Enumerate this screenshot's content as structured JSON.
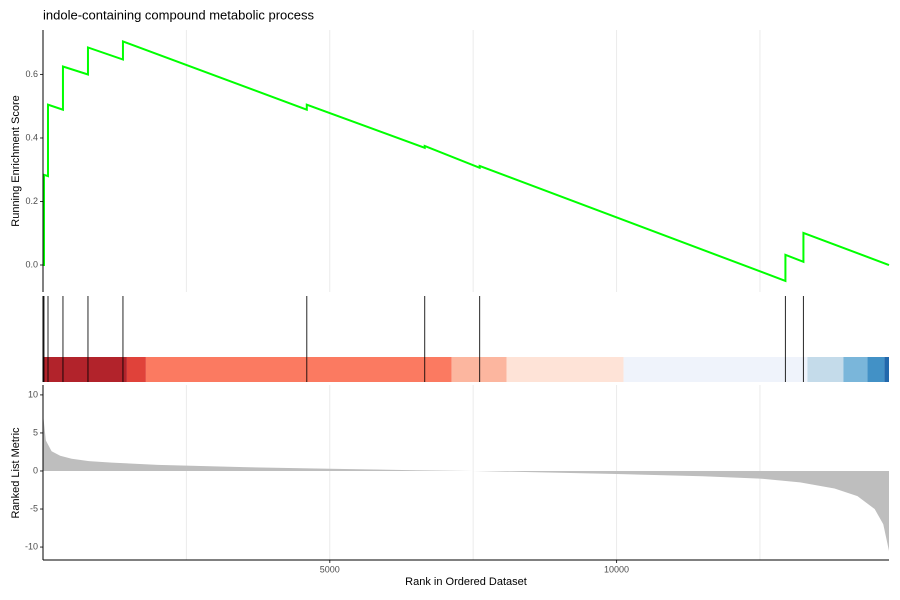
{
  "chart_data": [
    {
      "type": "line",
      "title": "indole-containing compound metabolic process",
      "ylabel": "Running Enrichment Score",
      "color": "#00ff00",
      "x": [
        0,
        17,
        17,
        87,
        87,
        348,
        348,
        784,
        784,
        1394,
        1394,
        4599,
        4599,
        6655,
        6655,
        7613,
        7613,
        12944,
        12944,
        13258,
        13258,
        14750
      ],
      "values": [
        0,
        0,
        0.284,
        0.28,
        0.505,
        0.489,
        0.625,
        0.6,
        0.685,
        0.647,
        0.704,
        0.489,
        0.505,
        0.369,
        0.375,
        0.306,
        0.312,
        -0.05,
        0.032,
        0.01,
        0.101,
        0.0
      ],
      "xlim": [
        0,
        14750
      ],
      "ylim": [
        -0.085,
        0.74
      ],
      "yticks": [
        {
          "value": 0,
          "label": "0.0"
        },
        0.2,
        0.4,
        0.6
      ],
      "xgrid": [
        2500,
        5000,
        7500,
        10000,
        12500
      ]
    },
    {
      "type": "rug",
      "hits": [
        17,
        87,
        348,
        784,
        1394,
        4599,
        6655,
        7613,
        12944,
        13258
      ],
      "hit_color": "#000000",
      "xlim": [
        0,
        14750
      ],
      "bands": [
        {
          "start": 0,
          "end": 1463,
          "color": "#b2232b"
        },
        {
          "start": 1463,
          "end": 1794,
          "color": "#e0423a"
        },
        {
          "start": 1794,
          "end": 7125,
          "color": "#fb7a61"
        },
        {
          "start": 7125,
          "end": 8084,
          "color": "#fcb69f"
        },
        {
          "start": 8084,
          "end": 10122,
          "color": "#fee3d7"
        },
        {
          "start": 10122,
          "end": 13328,
          "color": "#eff3fb"
        },
        {
          "start": 13328,
          "end": 13955,
          "color": "#c4dbea"
        },
        {
          "start": 13955,
          "end": 14373,
          "color": "#7ab6da"
        },
        {
          "start": 14373,
          "end": 14669,
          "color": "#4291c6"
        },
        {
          "start": 14669,
          "end": 14750,
          "color": "#2168ac"
        }
      ]
    },
    {
      "type": "area",
      "ylabel": "Ranked List Metric",
      "xlabel": "Rank in Ordered Dataset",
      "color": "#bebebe",
      "x": [
        0,
        50,
        150,
        300,
        500,
        800,
        1200,
        2000,
        3500,
        5000,
        6500,
        7500,
        8500,
        10000,
        11500,
        12500,
        13200,
        13800,
        14200,
        14500,
        14650,
        14750
      ],
      "values": [
        7.5,
        4,
        2.6,
        2,
        1.6,
        1.3,
        1.1,
        0.8,
        0.5,
        0.3,
        0.1,
        0,
        -0.15,
        -0.4,
        -0.7,
        -1,
        -1.5,
        -2.3,
        -3.3,
        -5,
        -7,
        -10.5
      ],
      "xlim": [
        0,
        14750
      ],
      "ylim": [
        -11.7,
        11.3
      ],
      "yticks": [
        -10,
        -5,
        0,
        5,
        10
      ],
      "xticks": [
        5000,
        10000
      ],
      "xgrid_minor": [
        2500,
        7500,
        12500
      ]
    }
  ]
}
